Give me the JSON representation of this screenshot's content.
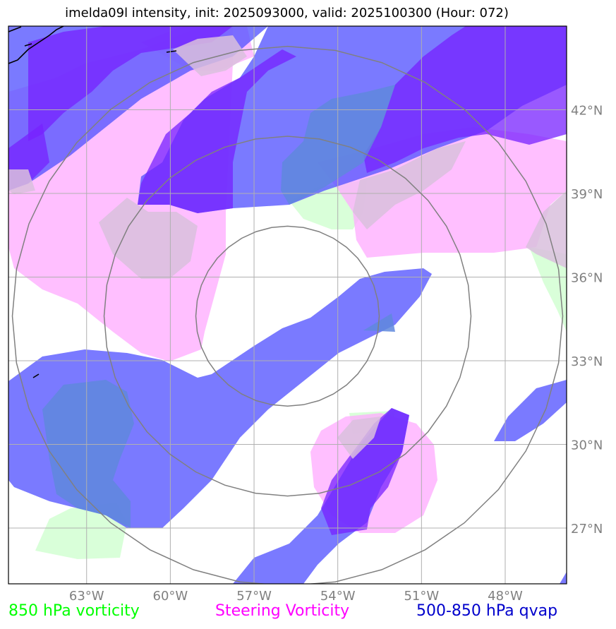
{
  "title": "imelda09l intensity, init: 2025093000, valid: 2025100300 (Hour: 072)",
  "map": {
    "lon_range": [
      -65.8,
      -45.8
    ],
    "lat_range": [
      25.0,
      45.0
    ],
    "lon_ticks": [
      {
        "value": -63,
        "label": "63°W"
      },
      {
        "value": -60,
        "label": "60°W"
      },
      {
        "value": -57,
        "label": "57°W"
      },
      {
        "value": -54,
        "label": "54°W"
      },
      {
        "value": -51,
        "label": "51°W"
      },
      {
        "value": -48,
        "label": "48°W"
      }
    ],
    "lat_ticks": [
      {
        "value": 27,
        "label": "27°N"
      },
      {
        "value": 30,
        "label": "30°N"
      },
      {
        "value": 33,
        "label": "33°N"
      },
      {
        "value": 36,
        "label": "36°N"
      },
      {
        "value": 39,
        "label": "39°N"
      },
      {
        "value": 42,
        "label": "42°N"
      }
    ],
    "storm_center": {
      "lon": -55.8,
      "lat": 34.6
    },
    "range_ring_count": 3,
    "grid": true
  },
  "colors": {
    "vorticity_850": "#ccffcc",
    "steering_vorticity": "#ffaaff",
    "qvap": "#5555ff",
    "qvap_dark": "#7722ff",
    "grid": "#b0b0b0",
    "rings": "#808080",
    "coast": "#000000"
  },
  "legend": [
    {
      "label": "850 hPa vorticity",
      "color": "#00ff00"
    },
    {
      "label": "Steering Vorticity",
      "color": "#ff00ff"
    },
    {
      "label": "500-850 hPa qvap",
      "color": "#0000cc"
    }
  ]
}
